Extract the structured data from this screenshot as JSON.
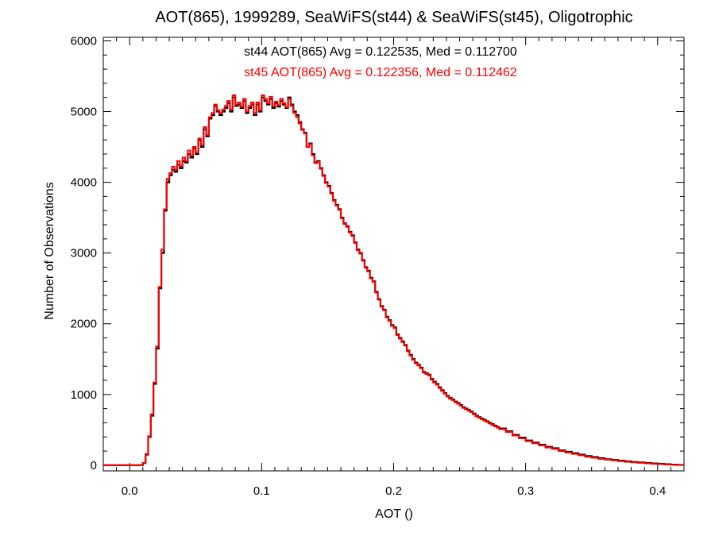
{
  "chart_data": {
    "type": "line",
    "title": "AOT(865), 1999289, SeaWiFS(st44) & SeaWiFS(st45), Oligotrophic",
    "xlabel": "AOT ()",
    "ylabel": "Number of Observations",
    "xlim": [
      -0.02,
      0.42
    ],
    "ylim": [
      -80,
      6050
    ],
    "x_ticks": [
      0.0,
      0.1,
      0.2,
      0.3,
      0.4
    ],
    "x_tick_labels": [
      "0.0",
      "0.1",
      "0.2",
      "0.3",
      "0.4"
    ],
    "y_ticks": [
      0,
      1000,
      2000,
      3000,
      4000,
      5000,
      6000
    ],
    "y_tick_labels": [
      "0",
      "1000",
      "2000",
      "3000",
      "4000",
      "5000",
      "6000"
    ],
    "grid": false,
    "step_style": "histogram",
    "annotations": [
      {
        "text": "st44 AOT(865) Avg = 0.122535, Med = 0.112700",
        "color": "#000000"
      },
      {
        "text": "st45 AOT(865) Avg = 0.122356, Med = 0.112462",
        "color": "#ff0000"
      }
    ],
    "series": [
      {
        "color": "#000000",
        "x": [
          -0.02,
          0.0,
          0.005,
          0.008,
          0.01,
          0.012,
          0.014,
          0.016,
          0.018,
          0.02,
          0.022,
          0.024,
          0.026,
          0.028,
          0.03,
          0.032,
          0.034,
          0.036,
          0.038,
          0.04,
          0.042,
          0.044,
          0.046,
          0.048,
          0.05,
          0.052,
          0.054,
          0.056,
          0.058,
          0.06,
          0.062,
          0.064,
          0.066,
          0.068,
          0.07,
          0.072,
          0.074,
          0.076,
          0.078,
          0.08,
          0.082,
          0.084,
          0.086,
          0.088,
          0.09,
          0.092,
          0.094,
          0.096,
          0.098,
          0.1,
          0.102,
          0.104,
          0.106,
          0.108,
          0.11,
          0.112,
          0.114,
          0.116,
          0.118,
          0.12,
          0.122,
          0.124,
          0.126,
          0.128,
          0.13,
          0.132,
          0.134,
          0.136,
          0.138,
          0.14,
          0.142,
          0.144,
          0.146,
          0.148,
          0.15,
          0.152,
          0.154,
          0.156,
          0.158,
          0.16,
          0.162,
          0.164,
          0.166,
          0.168,
          0.17,
          0.172,
          0.174,
          0.176,
          0.178,
          0.18,
          0.182,
          0.184,
          0.186,
          0.188,
          0.19,
          0.192,
          0.194,
          0.196,
          0.198,
          0.2,
          0.202,
          0.204,
          0.206,
          0.208,
          0.21,
          0.212,
          0.214,
          0.216,
          0.218,
          0.22,
          0.222,
          0.224,
          0.226,
          0.228,
          0.23,
          0.232,
          0.234,
          0.236,
          0.238,
          0.24,
          0.242,
          0.244,
          0.246,
          0.248,
          0.25,
          0.252,
          0.254,
          0.256,
          0.258,
          0.26,
          0.262,
          0.264,
          0.266,
          0.268,
          0.27,
          0.272,
          0.274,
          0.276,
          0.278,
          0.28,
          0.285,
          0.29,
          0.295,
          0.3,
          0.305,
          0.31,
          0.315,
          0.32,
          0.325,
          0.33,
          0.335,
          0.34,
          0.345,
          0.35,
          0.355,
          0.36,
          0.365,
          0.37,
          0.375,
          0.38,
          0.385,
          0.39,
          0.395,
          0.4,
          0.405,
          0.41,
          0.415
        ],
        "values": [
          0,
          0,
          0,
          0,
          30,
          150,
          400,
          700,
          1150,
          1650,
          2500,
          3000,
          3600,
          4000,
          4100,
          4180,
          4150,
          4250,
          4200,
          4300,
          4280,
          4400,
          4350,
          4480,
          4400,
          4600,
          4500,
          4750,
          4650,
          4900,
          4950,
          5080,
          5000,
          4950,
          5000,
          5050,
          5120,
          5000,
          5200,
          5080,
          5100,
          5050,
          5150,
          4980,
          5050,
          5100,
          4950,
          5100,
          5000,
          5200,
          5150,
          5100,
          5180,
          5050,
          5120,
          5070,
          5150,
          5100,
          5050,
          5200,
          5100,
          5000,
          4950,
          4850,
          4750,
          4700,
          4500,
          4550,
          4400,
          4280,
          4300,
          4200,
          4100,
          4000,
          3950,
          3850,
          3750,
          3680,
          3620,
          3500,
          3420,
          3380,
          3300,
          3250,
          3150,
          3050,
          3000,
          2900,
          2800,
          2750,
          2650,
          2600,
          2450,
          2350,
          2250,
          2200,
          2100,
          2050,
          1980,
          1950,
          1850,
          1800,
          1750,
          1700,
          1620,
          1560,
          1500,
          1450,
          1420,
          1380,
          1320,
          1300,
          1280,
          1220,
          1180,
          1150,
          1100,
          1060,
          1020,
          980,
          950,
          930,
          900,
          880,
          850,
          820,
          800,
          780,
          760,
          730,
          700,
          680,
          660,
          640,
          620,
          600,
          580,
          560,
          540,
          520,
          480,
          430,
          390,
          350,
          320,
          290,
          260,
          240,
          210,
          190,
          170,
          150,
          130,
          115,
          100,
          85,
          75,
          65,
          55,
          45,
          40,
          32,
          25,
          20,
          14,
          9,
          5
        ]
      },
      {
        "color": "#ff0000",
        "x": [
          -0.02,
          0.0,
          0.005,
          0.008,
          0.01,
          0.012,
          0.014,
          0.016,
          0.018,
          0.02,
          0.022,
          0.024,
          0.026,
          0.028,
          0.03,
          0.032,
          0.034,
          0.036,
          0.038,
          0.04,
          0.042,
          0.044,
          0.046,
          0.048,
          0.05,
          0.052,
          0.054,
          0.056,
          0.058,
          0.06,
          0.062,
          0.064,
          0.066,
          0.068,
          0.07,
          0.072,
          0.074,
          0.076,
          0.078,
          0.08,
          0.082,
          0.084,
          0.086,
          0.088,
          0.09,
          0.092,
          0.094,
          0.096,
          0.098,
          0.1,
          0.102,
          0.104,
          0.106,
          0.108,
          0.11,
          0.112,
          0.114,
          0.116,
          0.118,
          0.12,
          0.122,
          0.124,
          0.126,
          0.128,
          0.13,
          0.132,
          0.134,
          0.136,
          0.138,
          0.14,
          0.142,
          0.144,
          0.146,
          0.148,
          0.15,
          0.152,
          0.154,
          0.156,
          0.158,
          0.16,
          0.162,
          0.164,
          0.166,
          0.168,
          0.17,
          0.172,
          0.174,
          0.176,
          0.178,
          0.18,
          0.182,
          0.184,
          0.186,
          0.188,
          0.19,
          0.192,
          0.194,
          0.196,
          0.198,
          0.2,
          0.202,
          0.204,
          0.206,
          0.208,
          0.21,
          0.212,
          0.214,
          0.216,
          0.218,
          0.22,
          0.222,
          0.224,
          0.226,
          0.228,
          0.23,
          0.232,
          0.234,
          0.236,
          0.238,
          0.24,
          0.242,
          0.244,
          0.246,
          0.248,
          0.25,
          0.252,
          0.254,
          0.256,
          0.258,
          0.26,
          0.262,
          0.264,
          0.266,
          0.268,
          0.27,
          0.272,
          0.274,
          0.276,
          0.278,
          0.28,
          0.285,
          0.29,
          0.295,
          0.3,
          0.305,
          0.31,
          0.315,
          0.32,
          0.325,
          0.33,
          0.335,
          0.34,
          0.345,
          0.35,
          0.355,
          0.36,
          0.365,
          0.37,
          0.375,
          0.38,
          0.385,
          0.39,
          0.395,
          0.4,
          0.405,
          0.41,
          0.415
        ],
        "values": [
          0,
          0,
          0,
          0,
          30,
          160,
          410,
          720,
          1170,
          1680,
          2520,
          3050,
          3620,
          4050,
          4130,
          4220,
          4180,
          4300,
          4230,
          4350,
          4300,
          4450,
          4380,
          4500,
          4420,
          4620,
          4530,
          4780,
          4670,
          4920,
          4980,
          5100,
          5020,
          4980,
          5030,
          5080,
          5150,
          5030,
          5230,
          5100,
          5130,
          5070,
          5180,
          5000,
          5080,
          5130,
          4980,
          5130,
          5020,
          5230,
          5180,
          5120,
          5210,
          5080,
          5140,
          5090,
          5180,
          5120,
          5060,
          5180,
          5080,
          4980,
          4920,
          4830,
          4740,
          4690,
          4500,
          4540,
          4380,
          4270,
          4290,
          4190,
          4090,
          3990,
          3940,
          3840,
          3740,
          3670,
          3610,
          3490,
          3410,
          3370,
          3290,
          3240,
          3140,
          3040,
          2990,
          2890,
          2790,
          2740,
          2640,
          2590,
          2440,
          2340,
          2240,
          2190,
          2090,
          2040,
          1970,
          1940,
          1840,
          1790,
          1740,
          1690,
          1610,
          1550,
          1490,
          1440,
          1410,
          1370,
          1310,
          1290,
          1270,
          1210,
          1170,
          1140,
          1090,
          1050,
          1010,
          970,
          940,
          920,
          890,
          870,
          840,
          810,
          790,
          770,
          750,
          720,
          690,
          670,
          650,
          630,
          610,
          590,
          570,
          550,
          530,
          510,
          470,
          420,
          380,
          340,
          310,
          280,
          250,
          230,
          200,
          180,
          160,
          140,
          120,
          105,
          90,
          78,
          68,
          58,
          48,
          40,
          34,
          27,
          20,
          15,
          10,
          6,
          3
        ]
      }
    ]
  }
}
